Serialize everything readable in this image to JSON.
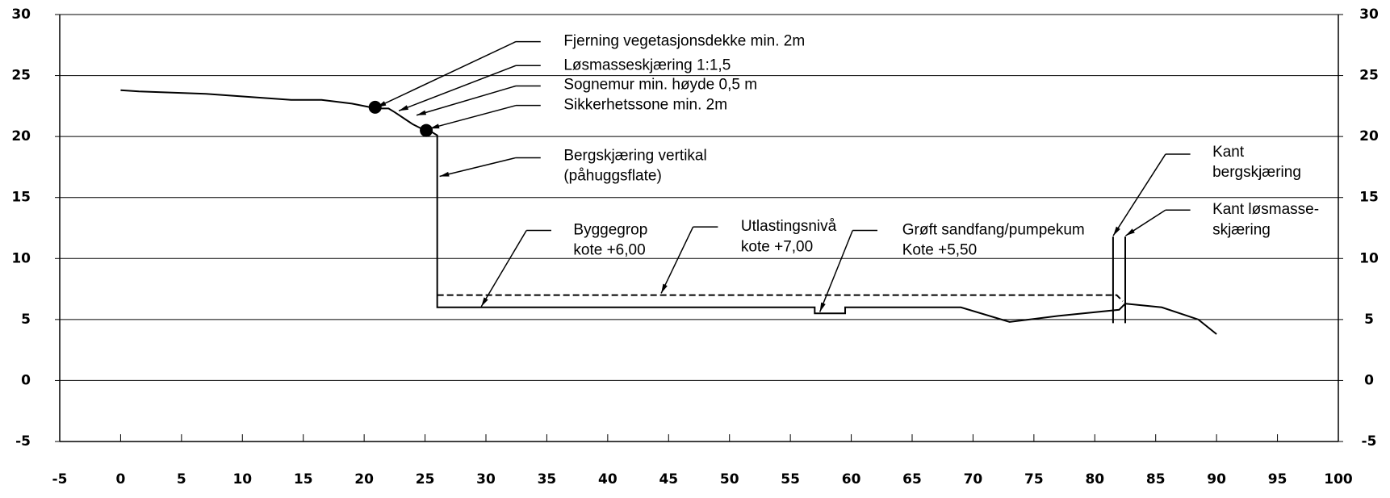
{
  "chart_data": {
    "type": "line",
    "xlim": [
      -5,
      100
    ],
    "xticks": [
      -5,
      0,
      5,
      10,
      15,
      20,
      25,
      30,
      35,
      40,
      45,
      50,
      55,
      60,
      65,
      70,
      75,
      80,
      85,
      90,
      95,
      100
    ],
    "ylim": [
      -5,
      30
    ],
    "yticks": [
      -5,
      0,
      5,
      10,
      15,
      20,
      25,
      30
    ],
    "grid": true,
    "series": [
      {
        "color": "#000000",
        "dash": false,
        "x": [
          0,
          1.5,
          7,
          14,
          16.5,
          19,
          21,
          22,
          22.5,
          24,
          25,
          25.5,
          26,
          26,
          57,
          57,
          59.5,
          59.5,
          69,
          73,
          77,
          82,
          82.5,
          85.5,
          88.5,
          90
        ],
        "values": [
          23.8,
          23.7,
          23.5,
          23,
          23,
          22.7,
          22.3,
          22.3,
          22,
          21,
          20.5,
          20.4,
          20.1,
          6,
          6,
          5.5,
          5.5,
          6,
          6,
          4.8,
          5.3,
          5.8,
          6.3,
          6,
          5,
          3.8
        ]
      },
      {
        "color": "#000000",
        "dash": true,
        "x": [
          26,
          81.8,
          82.3
        ],
        "values": [
          7,
          7,
          6.5
        ]
      },
      {
        "color": "#000000",
        "dash": false,
        "x": [
          81.5,
          81.5
        ],
        "values": [
          4.7,
          11.8
        ]
      },
      {
        "color": "#000000",
        "dash": false,
        "x": [
          82.5,
          82.5
        ],
        "values": [
          4.7,
          11.8
        ]
      }
    ],
    "markers": {
      "x": [
        20.9,
        25.1
      ],
      "values": [
        22.4,
        20.5
      ],
      "color": "#000000"
    },
    "annotations": [
      [
        "Fjerning vegetasjonsdekke min. 2m"
      ],
      [
        "Løsmasseskjæring 1:1,5"
      ],
      [
        "Sognemur min. høyde 0,5 m"
      ],
      [
        "Sikkerhetssone min. 2m"
      ],
      [
        "Bergskjæring vertikal",
        "(påhuggsflate)"
      ],
      [
        "Byggegrop",
        "kote +6,00"
      ],
      [
        "Utlastingsnivå",
        "kote +7,00"
      ],
      [
        "Grøft sandfang/pumpekum",
        "Kote +5,50"
      ],
      [
        "Kant",
        "bergskjæring"
      ],
      [
        "Kant løsmasse-",
        "skjæring"
      ]
    ]
  }
}
